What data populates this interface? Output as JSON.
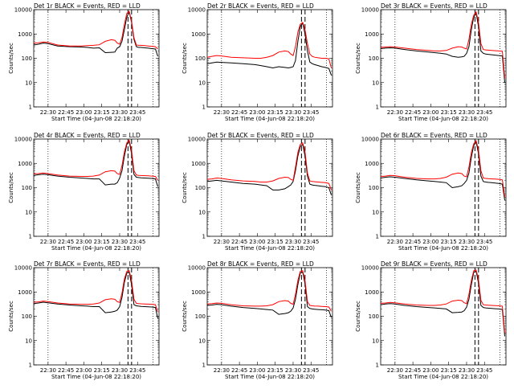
{
  "colors": {
    "events": "#000000",
    "lld": "#ff0000",
    "axis": "#000000",
    "background": "#ffffff"
  },
  "shared": {
    "ylabel": "Counts/sec",
    "xlabel": "Start Time (04-Jun-08 22:18:20)",
    "xticks": [
      "22:30",
      "22:45",
      "23:00",
      "23:15",
      "23:30",
      "23:45"
    ],
    "xrange": [
      0,
      105
    ],
    "ylim": [
      1,
      10000
    ],
    "yscale": "log",
    "yticks": [
      "1",
      "10",
      "100",
      "1000",
      "10000"
    ],
    "dotted_lines": [
      12,
      100
    ],
    "dashed_lines": [
      79,
      82
    ]
  },
  "chart_data": [
    {
      "type": "line",
      "title": "Det 1r BLACK = Events, RED = LLD",
      "ylim": [
        1,
        10000
      ],
      "x": [
        0,
        4,
        8,
        12,
        20,
        30,
        40,
        45,
        50,
        55,
        60,
        65,
        68,
        70,
        72,
        74,
        76,
        78,
        80,
        82,
        84,
        86,
        88,
        90,
        93,
        96,
        99,
        102,
        104
      ],
      "series": [
        {
          "name": "Events",
          "values": [
            350,
            380,
            420,
            400,
            320,
            300,
            290,
            280,
            260,
            270,
            170,
            175,
            180,
            260,
            300,
            500,
            1500,
            5000,
            8000,
            3000,
            600,
            300,
            280,
            280,
            270,
            260,
            250,
            240,
            120
          ]
        },
        {
          "name": "LLD",
          "values": [
            420,
            430,
            470,
            450,
            350,
            320,
            320,
            330,
            340,
            360,
            500,
            580,
            550,
            420,
            380,
            700,
            2500,
            7000,
            8500,
            3500,
            700,
            350,
            340,
            340,
            330,
            320,
            310,
            300,
            240
          ]
        }
      ]
    },
    {
      "type": "line",
      "title": "Det 2r BLACK = Events, RED = LLD",
      "ylim": [
        1,
        10000
      ],
      "x": [
        0,
        4,
        8,
        12,
        20,
        30,
        40,
        45,
        50,
        55,
        60,
        65,
        68,
        70,
        72,
        74,
        76,
        78,
        80,
        82,
        84,
        86,
        88,
        90,
        93,
        96,
        99,
        102,
        104
      ],
      "series": [
        {
          "name": "Events",
          "values": [
            60,
            65,
            70,
            68,
            65,
            60,
            55,
            50,
            45,
            40,
            45,
            42,
            40,
            42,
            45,
            80,
            500,
            2000,
            2800,
            1000,
            200,
            70,
            60,
            55,
            50,
            45,
            42,
            38,
            20
          ]
        },
        {
          "name": "LLD",
          "values": [
            110,
            120,
            130,
            125,
            110,
            105,
            100,
            100,
            110,
            130,
            180,
            200,
            190,
            150,
            130,
            300,
            1200,
            2500,
            3000,
            1500,
            400,
            150,
            120,
            110,
            105,
            100,
            100,
            95,
            40
          ]
        }
      ]
    },
    {
      "type": "line",
      "title": "Det 3r BLACK = Events, RED = LLD",
      "ylim": [
        1,
        10000
      ],
      "x": [
        0,
        4,
        8,
        12,
        20,
        30,
        40,
        45,
        50,
        55,
        60,
        65,
        68,
        70,
        72,
        74,
        76,
        78,
        80,
        82,
        84,
        86,
        88,
        90,
        93,
        96,
        99,
        102,
        104
      ],
      "series": [
        {
          "name": "Events",
          "values": [
            250,
            260,
            270,
            260,
            230,
            200,
            180,
            170,
            160,
            150,
            120,
            110,
            115,
            120,
            160,
            300,
            1500,
            5000,
            7000,
            2000,
            200,
            160,
            150,
            145,
            140,
            135,
            130,
            125,
            10
          ]
        },
        {
          "name": "LLD",
          "values": [
            280,
            290,
            300,
            290,
            260,
            230,
            210,
            200,
            200,
            210,
            260,
            300,
            290,
            260,
            240,
            600,
            2500,
            6000,
            8000,
            3000,
            400,
            230,
            220,
            215,
            210,
            205,
            200,
            195,
            15
          ]
        }
      ]
    },
    {
      "type": "line",
      "title": "Det 4r BLACK = Events, RED = LLD",
      "ylim": [
        1,
        10000
      ],
      "x": [
        0,
        4,
        8,
        12,
        20,
        30,
        40,
        45,
        50,
        55,
        60,
        65,
        68,
        70,
        72,
        74,
        76,
        78,
        80,
        82,
        84,
        86,
        88,
        90,
        93,
        96,
        99,
        102,
        104
      ],
      "series": [
        {
          "name": "Events",
          "values": [
            320,
            340,
            360,
            340,
            300,
            270,
            250,
            240,
            230,
            230,
            130,
            140,
            140,
            160,
            250,
            500,
            2000,
            6000,
            8000,
            2500,
            350,
            270,
            260,
            255,
            250,
            245,
            240,
            230,
            110
          ]
        },
        {
          "name": "LLD",
          "values": [
            370,
            380,
            400,
            380,
            330,
            300,
            290,
            290,
            300,
            330,
            450,
            500,
            480,
            380,
            350,
            800,
            3000,
            7000,
            9000,
            3500,
            500,
            330,
            320,
            315,
            310,
            305,
            300,
            290,
            200
          ]
        }
      ]
    },
    {
      "type": "line",
      "title": "Det 5r BLACK = Events, RED = LLD",
      "ylim": [
        1,
        10000
      ],
      "x": [
        0,
        4,
        8,
        12,
        20,
        30,
        40,
        45,
        50,
        55,
        60,
        65,
        68,
        70,
        72,
        74,
        76,
        78,
        80,
        82,
        84,
        86,
        88,
        90,
        93,
        96,
        99,
        102,
        104
      ],
      "series": [
        {
          "name": "Events",
          "values": [
            180,
            190,
            200,
            190,
            170,
            150,
            140,
            130,
            120,
            80,
            80,
            90,
            110,
            130,
            180,
            500,
            2000,
            5000,
            6000,
            2000,
            300,
            140,
            130,
            125,
            120,
            115,
            110,
            100,
            50
          ]
        },
        {
          "name": "LLD",
          "values": [
            220,
            230,
            250,
            240,
            210,
            190,
            180,
            170,
            170,
            190,
            240,
            270,
            260,
            220,
            200,
            700,
            2800,
            6000,
            7000,
            3000,
            400,
            190,
            180,
            175,
            170,
            165,
            160,
            150,
            80
          ]
        }
      ]
    },
    {
      "type": "line",
      "title": "Det 6r BLACK = Events, RED = LLD",
      "ylim": [
        1,
        10000
      ],
      "x": [
        0,
        4,
        8,
        12,
        20,
        30,
        40,
        45,
        50,
        55,
        60,
        65,
        68,
        70,
        72,
        74,
        76,
        78,
        80,
        82,
        84,
        86,
        88,
        90,
        93,
        96,
        99,
        102,
        104
      ],
      "series": [
        {
          "name": "Events",
          "values": [
            250,
            270,
            280,
            270,
            240,
            210,
            190,
            180,
            170,
            160,
            100,
            110,
            120,
            150,
            200,
            400,
            1800,
            5500,
            7500,
            2500,
            300,
            180,
            170,
            165,
            160,
            155,
            150,
            140,
            30
          ]
        },
        {
          "name": "LLD",
          "values": [
            290,
            300,
            320,
            310,
            270,
            240,
            230,
            230,
            240,
            270,
            360,
            400,
            380,
            300,
            280,
            700,
            2800,
            6500,
            8500,
            3500,
            500,
            250,
            240,
            235,
            230,
            225,
            220,
            210,
            40
          ]
        }
      ]
    },
    {
      "type": "line",
      "title": "Det 7r BLACK = Events, RED = LLD",
      "ylim": [
        1,
        10000
      ],
      "x": [
        0,
        4,
        8,
        12,
        20,
        30,
        40,
        45,
        50,
        55,
        60,
        65,
        68,
        70,
        72,
        74,
        76,
        78,
        80,
        82,
        84,
        86,
        88,
        90,
        93,
        96,
        99,
        102,
        104
      ],
      "series": [
        {
          "name": "Events",
          "values": [
            330,
            350,
            380,
            360,
            320,
            290,
            270,
            260,
            250,
            250,
            140,
            150,
            160,
            180,
            250,
            600,
            2500,
            6000,
            6500,
            2000,
            300,
            270,
            260,
            255,
            250,
            245,
            240,
            230,
            80
          ]
        },
        {
          "name": "LLD",
          "values": [
            380,
            390,
            420,
            400,
            350,
            320,
            310,
            310,
            320,
            350,
            480,
            520,
            500,
            400,
            370,
            900,
            3500,
            7000,
            7500,
            3000,
            500,
            340,
            330,
            325,
            320,
            315,
            310,
            300,
            150
          ]
        }
      ]
    },
    {
      "type": "line",
      "title": "Det 8r BLACK = Events, RED = LLD",
      "ylim": [
        1,
        10000
      ],
      "x": [
        0,
        4,
        8,
        12,
        20,
        30,
        40,
        45,
        50,
        55,
        60,
        65,
        68,
        70,
        72,
        74,
        76,
        78,
        80,
        82,
        84,
        86,
        88,
        90,
        93,
        96,
        99,
        102,
        104
      ],
      "series": [
        {
          "name": "Events",
          "values": [
            280,
            290,
            310,
            300,
            260,
            230,
            210,
            200,
            190,
            180,
            120,
            130,
            140,
            160,
            220,
            500,
            2000,
            6000,
            6500,
            2200,
            250,
            210,
            200,
            195,
            190,
            185,
            180,
            170,
            90
          ]
        },
        {
          "name": "LLD",
          "values": [
            320,
            330,
            350,
            340,
            300,
            270,
            260,
            260,
            270,
            300,
            400,
            440,
            420,
            340,
            310,
            800,
            3000,
            7000,
            7500,
            3000,
            400,
            280,
            270,
            265,
            260,
            255,
            250,
            240,
            160
          ]
        }
      ]
    },
    {
      "type": "line",
      "title": "Det 9r BLACK = Events, RED = LLD",
      "ylim": [
        1,
        10000
      ],
      "x": [
        0,
        4,
        8,
        12,
        20,
        30,
        40,
        45,
        50,
        55,
        60,
        65,
        68,
        70,
        72,
        74,
        76,
        78,
        80,
        82,
        84,
        86,
        88,
        90,
        93,
        96,
        99,
        102,
        104
      ],
      "series": [
        {
          "name": "Events",
          "values": [
            300,
            320,
            330,
            320,
            280,
            250,
            230,
            220,
            210,
            200,
            140,
            145,
            150,
            170,
            240,
            500,
            2000,
            6500,
            7000,
            2300,
            280,
            230,
            220,
            215,
            210,
            205,
            200,
            190,
            15
          ]
        },
        {
          "name": "LLD",
          "values": [
            340,
            350,
            370,
            360,
            320,
            290,
            280,
            280,
            290,
            320,
            420,
            460,
            440,
            360,
            330,
            800,
            3000,
            7500,
            8000,
            3200,
            450,
            300,
            290,
            285,
            280,
            275,
            270,
            260,
            20
          ]
        }
      ]
    }
  ]
}
